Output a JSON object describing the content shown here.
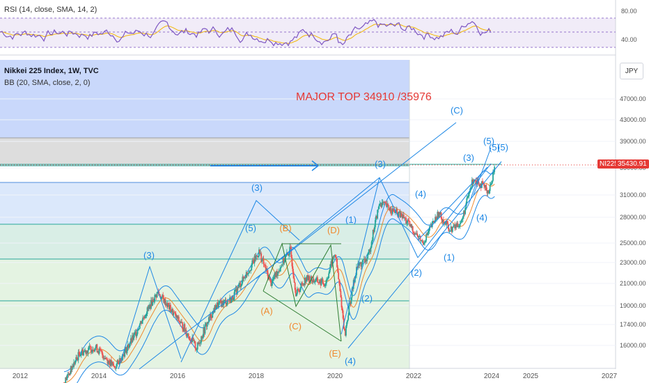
{
  "legend": {
    "rsi": "RSI (14, close, SMA, 14, 2)",
    "main": "Nikkei 225 Index, 1W, TVC",
    "bb": "BB (20, SMA, close, 2, 0)"
  },
  "currency": "JPY",
  "price_tag": {
    "symbol": "NI225",
    "value": "35430.91"
  },
  "annotation": "MAJOR TOP 34910 /35976",
  "colors": {
    "accent": "#e53935",
    "wave_blue": "#1e88e5",
    "wave_orange": "#ef8a2f",
    "candle_up": "#26a69a",
    "candle_down": "#ef5350"
  },
  "chart_data": {
    "type": "line",
    "title": "Nikkei 225 Index, 1W, TVC",
    "x_ticks": [
      "2012",
      "2014",
      "2016",
      "2018",
      "2020",
      "2022",
      "2024",
      "2025",
      "2027"
    ],
    "y_ticks": [
      "16000.00",
      "17400.00",
      "19000.00",
      "21000.00",
      "23000.00",
      "25000.00",
      "28000.00",
      "31000.00",
      "35000.00",
      "39000.00",
      "43000.00",
      "47000.00"
    ],
    "rsi_ticks": [
      "80.00",
      "40.00"
    ],
    "last_price": 35430.91,
    "series": [
      {
        "name": "Nikkei 225",
        "points": [
          [
            2013.0,
            13500
          ],
          [
            2013.4,
            15500
          ],
          [
            2013.8,
            15900
          ],
          [
            2014.3,
            14500
          ],
          [
            2014.8,
            16600
          ],
          [
            2015.4,
            20200
          ],
          [
            2015.9,
            17900
          ],
          [
            2016.4,
            15800
          ],
          [
            2016.9,
            19000
          ],
          [
            2017.3,
            19600
          ],
          [
            2017.8,
            22700
          ],
          [
            2018.0,
            24100
          ],
          [
            2018.3,
            21000
          ],
          [
            2018.8,
            24300
          ],
          [
            2018.95,
            20000
          ],
          [
            2019.2,
            21500
          ],
          [
            2019.7,
            21000
          ],
          [
            2019.95,
            24000
          ],
          [
            2020.2,
            16600
          ],
          [
            2020.5,
            22500
          ],
          [
            2020.8,
            23500
          ],
          [
            2021.1,
            30000
          ],
          [
            2021.7,
            28000
          ],
          [
            2022.2,
            25000
          ],
          [
            2022.6,
            28500
          ],
          [
            2022.9,
            26500
          ],
          [
            2023.2,
            27500
          ],
          [
            2023.5,
            33500
          ],
          [
            2023.9,
            31500
          ],
          [
            2024.05,
            35400
          ]
        ]
      }
    ]
  },
  "wave_labels": {
    "blue": [
      "(3)",
      "(3)",
      "(5)",
      "(1)",
      "(2)",
      "(3)",
      "(4)",
      "(1)",
      "(2)",
      "(3)",
      "(4)",
      "(5)",
      "(5)",
      "(5)",
      "(C)",
      "(4)"
    ],
    "orange": [
      "(A)",
      "(B)",
      "(C)",
      "(D)",
      "(E)"
    ]
  }
}
